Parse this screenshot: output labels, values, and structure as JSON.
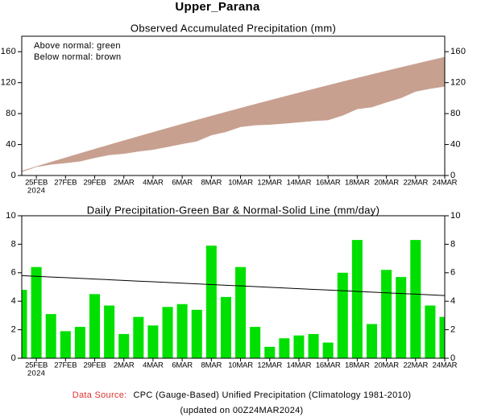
{
  "title": "Upper_Parana",
  "footer": {
    "source_label": "Data Source:",
    "source": "CPC (Gauge-Based) Unified Precipitation (Climatology 1981-2010)",
    "updated": "(updated on 00Z24MAR2024)",
    "source_label_color": "#e03030"
  },
  "chart_data": [
    {
      "type": "area",
      "title": "Observed Accumulated Precipitation (mm)",
      "categories": [
        null,
        "25FEB",
        null,
        "27FEB",
        null,
        "29FEB",
        null,
        "2MAR",
        null,
        "4MAR",
        null,
        "6MAR",
        null,
        "8MAR",
        null,
        "10MAR",
        null,
        "12MAR",
        null,
        "14MAR",
        null,
        "16MAR",
        null,
        "18MAR",
        null,
        "20MAR",
        null,
        "22MAR",
        null,
        "24MAR"
      ],
      "category_year": "2024",
      "annotations": [
        "Above normal: green",
        "Below normal: brown"
      ],
      "above_color": "#00dd00",
      "below_color": "#c8a090",
      "series": [
        {
          "values": [
            4.8,
            11.2,
            14.3,
            16.2,
            18.4,
            22.9,
            26.6,
            28.3,
            31.2,
            33.5,
            37.1,
            40.9,
            44.3,
            52.2,
            56.5,
            62.9,
            65.1,
            65.9,
            67.3,
            68.9,
            70.6,
            71.7,
            77.7,
            86.0,
            88.4,
            94.6,
            100.3,
            108.6,
            112.3,
            115.2
          ]
        },
        {
          "values": [
            5.8,
            11.55,
            17.25,
            22.91,
            28.52,
            34.08,
            39.59,
            45.05,
            50.46,
            55.83,
            61.15,
            66.42,
            71.64,
            76.81,
            81.93,
            87.01,
            92.04,
            97.02,
            101.95,
            106.83,
            111.66,
            116.45,
            121.19,
            125.88,
            130.52,
            135.11,
            139.65,
            144.15,
            148.6,
            153.0
          ]
        }
      ],
      "ylim": [
        0,
        180
      ],
      "yticks": [
        0,
        40,
        80,
        120,
        160
      ],
      "right_axis": true
    },
    {
      "type": "bar",
      "title": "Daily Precipitation-Green Bar & Normal-Solid Line (mm/day)",
      "categories": [
        null,
        "25FEB",
        null,
        "27FEB",
        null,
        "29FEB",
        null,
        "2MAR",
        null,
        "4MAR",
        null,
        "6MAR",
        null,
        "8MAR",
        null,
        "10MAR",
        null,
        "12MAR",
        null,
        "14MAR",
        null,
        "16MAR",
        null,
        "18MAR",
        null,
        "20MAR",
        null,
        "22MAR",
        null,
        "24MAR"
      ],
      "category_year": "2024",
      "series": [
        {
          "color": "#00e000",
          "values": [
            4.8,
            6.4,
            3.1,
            1.9,
            2.2,
            4.5,
            3.7,
            1.7,
            2.9,
            2.3,
            3.6,
            3.8,
            3.4,
            7.9,
            4.3,
            6.4,
            2.2,
            0.8,
            1.4,
            1.6,
            1.7,
            1.1,
            6.0,
            8.3,
            2.4,
            6.2,
            5.7,
            8.3,
            3.7,
            2.9
          ]
        },
        {
          "type": "line",
          "color": "#000000",
          "values": [
            5.8,
            5.75,
            5.7,
            5.66,
            5.61,
            5.56,
            5.51,
            5.46,
            5.41,
            5.37,
            5.32,
            5.27,
            5.22,
            5.17,
            5.12,
            5.08,
            5.03,
            4.98,
            4.93,
            4.88,
            4.83,
            4.79,
            4.74,
            4.69,
            4.64,
            4.59,
            4.54,
            4.5,
            4.45,
            4.4
          ]
        }
      ],
      "ylim": [
        0,
        10
      ],
      "yticks": [
        0,
        2,
        4,
        6,
        8,
        10
      ],
      "right_axis": true
    }
  ]
}
